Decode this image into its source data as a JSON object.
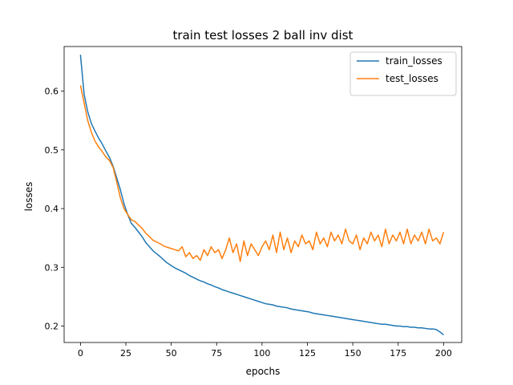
{
  "chart_data": {
    "type": "line",
    "title": "train test losses 2 ball inv dist",
    "xlabel": "epochs",
    "ylabel": "losses",
    "xlim": [
      -9,
      210
    ],
    "ylim": [
      0.172,
      0.676
    ],
    "xticks": [
      0,
      25,
      50,
      75,
      100,
      125,
      150,
      175,
      200
    ],
    "yticks": [
      0.2,
      0.3,
      0.4,
      0.5,
      0.6
    ],
    "grid": false,
    "legend_position": "top-right",
    "series": [
      {
        "name": "train_losses",
        "color": "#1f77b4",
        "x": [
          0,
          2,
          4,
          6,
          8,
          10,
          12,
          14,
          16,
          18,
          20,
          22,
          24,
          26,
          28,
          30,
          32,
          34,
          36,
          38,
          40,
          42,
          44,
          46,
          48,
          50,
          52,
          54,
          56,
          58,
          60,
          62,
          64,
          66,
          68,
          70,
          72,
          74,
          76,
          78,
          80,
          82,
          84,
          86,
          88,
          90,
          92,
          94,
          96,
          98,
          100,
          102,
          104,
          106,
          108,
          110,
          112,
          114,
          116,
          118,
          120,
          122,
          124,
          126,
          128,
          130,
          132,
          134,
          136,
          138,
          140,
          142,
          144,
          146,
          148,
          150,
          152,
          154,
          156,
          158,
          160,
          162,
          164,
          166,
          168,
          170,
          172,
          174,
          176,
          178,
          180,
          182,
          184,
          186,
          188,
          190,
          192,
          194,
          196,
          198,
          200
        ],
        "y": [
          0.662,
          0.595,
          0.565,
          0.545,
          0.532,
          0.52,
          0.51,
          0.498,
          0.487,
          0.472,
          0.452,
          0.432,
          0.408,
          0.39,
          0.375,
          0.368,
          0.36,
          0.352,
          0.342,
          0.335,
          0.328,
          0.323,
          0.318,
          0.312,
          0.307,
          0.303,
          0.299,
          0.296,
          0.293,
          0.29,
          0.286,
          0.283,
          0.28,
          0.277,
          0.275,
          0.272,
          0.27,
          0.267,
          0.265,
          0.262,
          0.26,
          0.258,
          0.256,
          0.254,
          0.252,
          0.25,
          0.248,
          0.246,
          0.244,
          0.242,
          0.24,
          0.238,
          0.237,
          0.236,
          0.234,
          0.233,
          0.232,
          0.231,
          0.229,
          0.228,
          0.227,
          0.226,
          0.225,
          0.224,
          0.222,
          0.221,
          0.22,
          0.219,
          0.218,
          0.217,
          0.216,
          0.215,
          0.214,
          0.213,
          0.212,
          0.211,
          0.21,
          0.209,
          0.208,
          0.207,
          0.206,
          0.205,
          0.204,
          0.203,
          0.203,
          0.202,
          0.201,
          0.2,
          0.2,
          0.199,
          0.199,
          0.198,
          0.198,
          0.197,
          0.197,
          0.196,
          0.195,
          0.195,
          0.194,
          0.19,
          0.185
        ]
      },
      {
        "name": "test_losses",
        "color": "#ff7f0e",
        "x": [
          0,
          2,
          4,
          6,
          8,
          10,
          12,
          14,
          16,
          18,
          20,
          22,
          24,
          26,
          28,
          30,
          32,
          34,
          36,
          38,
          40,
          42,
          44,
          46,
          48,
          50,
          52,
          54,
          56,
          58,
          60,
          62,
          64,
          66,
          68,
          70,
          72,
          74,
          76,
          78,
          80,
          82,
          84,
          86,
          88,
          90,
          92,
          94,
          96,
          98,
          100,
          102,
          104,
          106,
          108,
          110,
          112,
          114,
          116,
          118,
          120,
          122,
          124,
          126,
          128,
          130,
          132,
          134,
          136,
          138,
          140,
          142,
          144,
          146,
          148,
          150,
          152,
          154,
          156,
          158,
          160,
          162,
          164,
          166,
          168,
          170,
          172,
          174,
          176,
          178,
          180,
          182,
          184,
          186,
          188,
          190,
          192,
          194,
          196,
          198,
          200
        ],
        "y": [
          0.61,
          0.58,
          0.55,
          0.53,
          0.515,
          0.505,
          0.497,
          0.488,
          0.482,
          0.47,
          0.445,
          0.418,
          0.4,
          0.39,
          0.381,
          0.378,
          0.372,
          0.366,
          0.358,
          0.352,
          0.346,
          0.343,
          0.34,
          0.336,
          0.334,
          0.332,
          0.33,
          0.328,
          0.335,
          0.318,
          0.325,
          0.315,
          0.32,
          0.312,
          0.33,
          0.32,
          0.335,
          0.325,
          0.33,
          0.315,
          0.33,
          0.35,
          0.325,
          0.34,
          0.31,
          0.345,
          0.32,
          0.34,
          0.33,
          0.32,
          0.335,
          0.345,
          0.33,
          0.355,
          0.325,
          0.36,
          0.33,
          0.35,
          0.325,
          0.345,
          0.335,
          0.355,
          0.34,
          0.345,
          0.33,
          0.36,
          0.34,
          0.35,
          0.335,
          0.36,
          0.345,
          0.355,
          0.34,
          0.365,
          0.345,
          0.34,
          0.355,
          0.33,
          0.35,
          0.34,
          0.36,
          0.345,
          0.355,
          0.335,
          0.365,
          0.34,
          0.355,
          0.345,
          0.36,
          0.34,
          0.365,
          0.34,
          0.355,
          0.345,
          0.36,
          0.34,
          0.365,
          0.345,
          0.35,
          0.34,
          0.36
        ]
      }
    ]
  }
}
